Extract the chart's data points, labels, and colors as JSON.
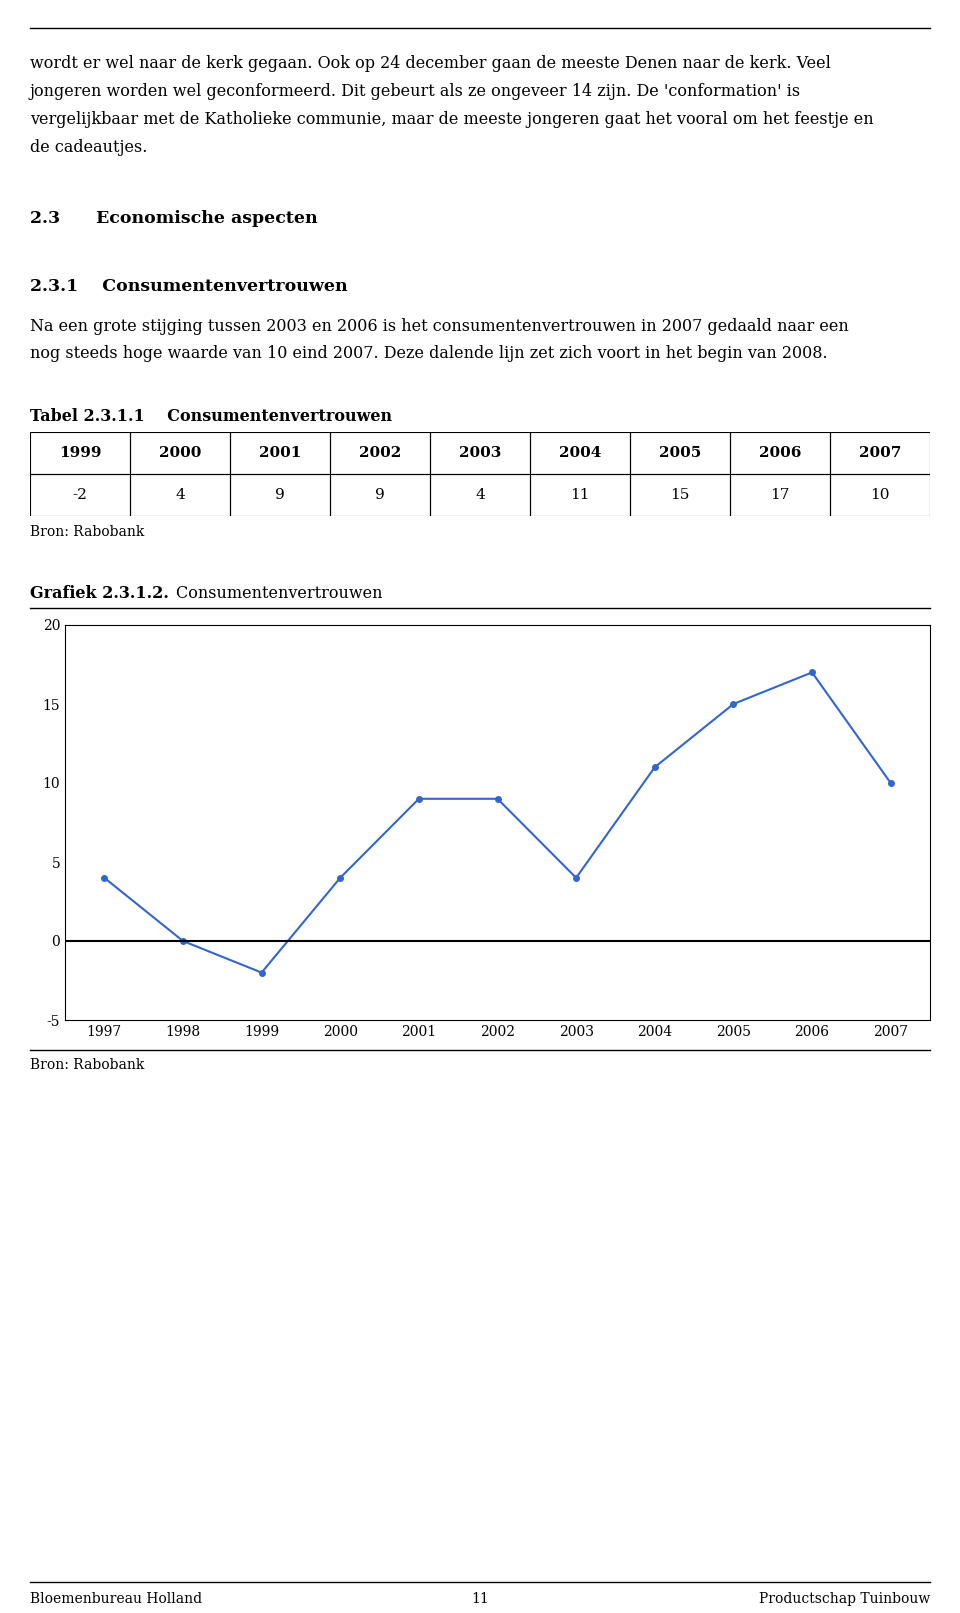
{
  "para1_lines": [
    "wordt er wel naar de kerk gegaan. Ook op 24 december gaan de meeste Denen naar de kerk. Veel",
    "jongeren worden wel geconformeerd. Dit gebeurt als ze ongeveer 14 zijn. De 'conformation' is",
    "vergelijkbaar met de Katholieke communie, maar de meeste jongeren gaat het vooral om het feestje en",
    "de cadeautjes."
  ],
  "section_title": "2.3      Economische aspecten",
  "subsection_title": "2.3.1    Consumentenvertrouwen",
  "body_lines": [
    "Na een grote stijging tussen 2003 en 2006 is het consumentenvertrouwen in 2007 gedaald naar een",
    "nog steeds hoge waarde van 10 eind 2007. Deze dalende lijn zet zich voort in het begin van 2008."
  ],
  "table_title": "Tabel 2.3.1.1    Consumentenvertrouwen",
  "table_headers": [
    "1999",
    "2000",
    "2001",
    "2002",
    "2003",
    "2004",
    "2005",
    "2006",
    "2007"
  ],
  "table_values": [
    "-2",
    "4",
    "9",
    "9",
    "4",
    "11",
    "15",
    "17",
    "10"
  ],
  "table_source": "Bron: Rabobank",
  "chart_label_bold": "Grafiek 2.3.1.2.",
  "chart_label_normal": "        Consumentenvertrouwen",
  "chart_source": "Bron: Rabobank",
  "years": [
    1997,
    1998,
    1999,
    2000,
    2001,
    2002,
    2003,
    2004,
    2005,
    2006,
    2007
  ],
  "values": [
    4,
    0,
    -2,
    4,
    9,
    9,
    4,
    11,
    15,
    17,
    10
  ],
  "line_color": "#3366CC",
  "marker": "o",
  "marker_size": 4,
  "ylim": [
    -5,
    20
  ],
  "yticks": [
    -5,
    0,
    5,
    10,
    15,
    20
  ],
  "footer_left": "Bloemenbureau Holland",
  "footer_center": "11",
  "footer_right": "Productschap Tuinbouw",
  "background_color": "#ffffff",
  "text_fontsize": 11.5,
  "heading_fontsize": 12.5,
  "small_fontsize": 10,
  "chart_tick_fontsize": 10
}
